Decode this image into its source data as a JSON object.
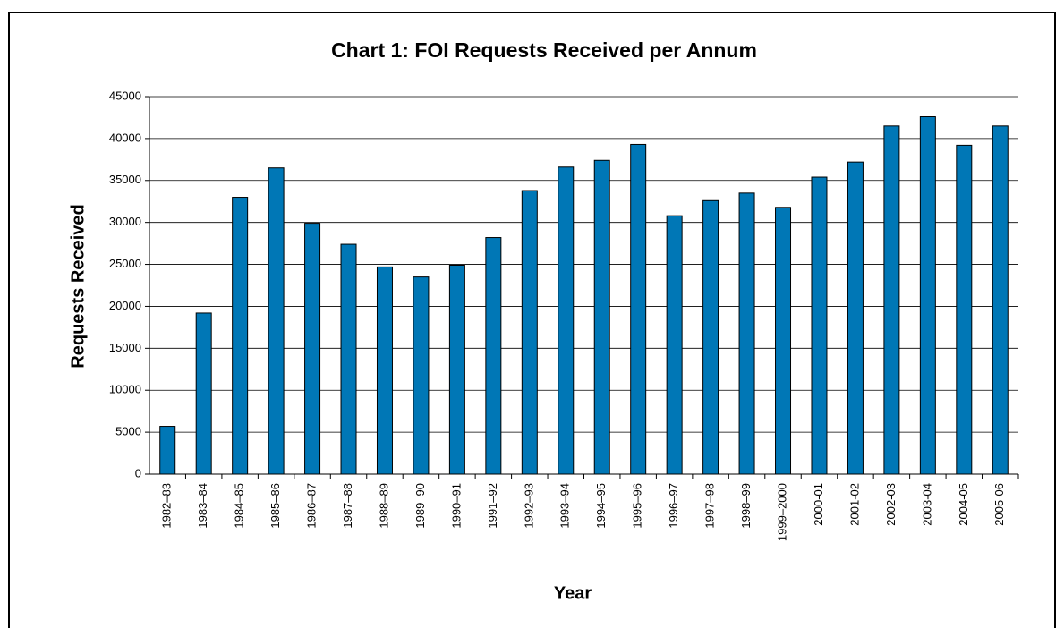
{
  "chart_data": {
    "type": "bar",
    "title": "Chart 1: FOI Requests Received per Annum",
    "x_label": "Year",
    "y_label": "Requests Received",
    "categories": [
      "1982–83",
      "1983–84",
      "1984–85",
      "1985–86",
      "1986–87",
      "1987–88",
      "1988–89",
      "1989–90",
      "1990–91",
      "1991–92",
      "1992–93",
      "1993–94",
      "1994–95",
      "1995–96",
      "1996–97",
      "1997–98",
      "1998–99",
      "1999–2000",
      "2000-01",
      "2001-02",
      "2002-03",
      "2003-04",
      "2004-05",
      "2005-06"
    ],
    "values": [
      5700,
      19200,
      33000,
      36500,
      29900,
      27400,
      24700,
      23500,
      24900,
      28200,
      33800,
      36600,
      37400,
      39300,
      30800,
      32600,
      33500,
      31800,
      35400,
      37200,
      41500,
      42600,
      39200,
      41500
    ],
    "color": "#0077b6",
    "ylim": [
      0,
      45000
    ],
    "yticks": [
      0,
      5000,
      10000,
      15000,
      20000,
      25000,
      30000,
      35000,
      40000,
      45000
    ],
    "grid": true
  }
}
